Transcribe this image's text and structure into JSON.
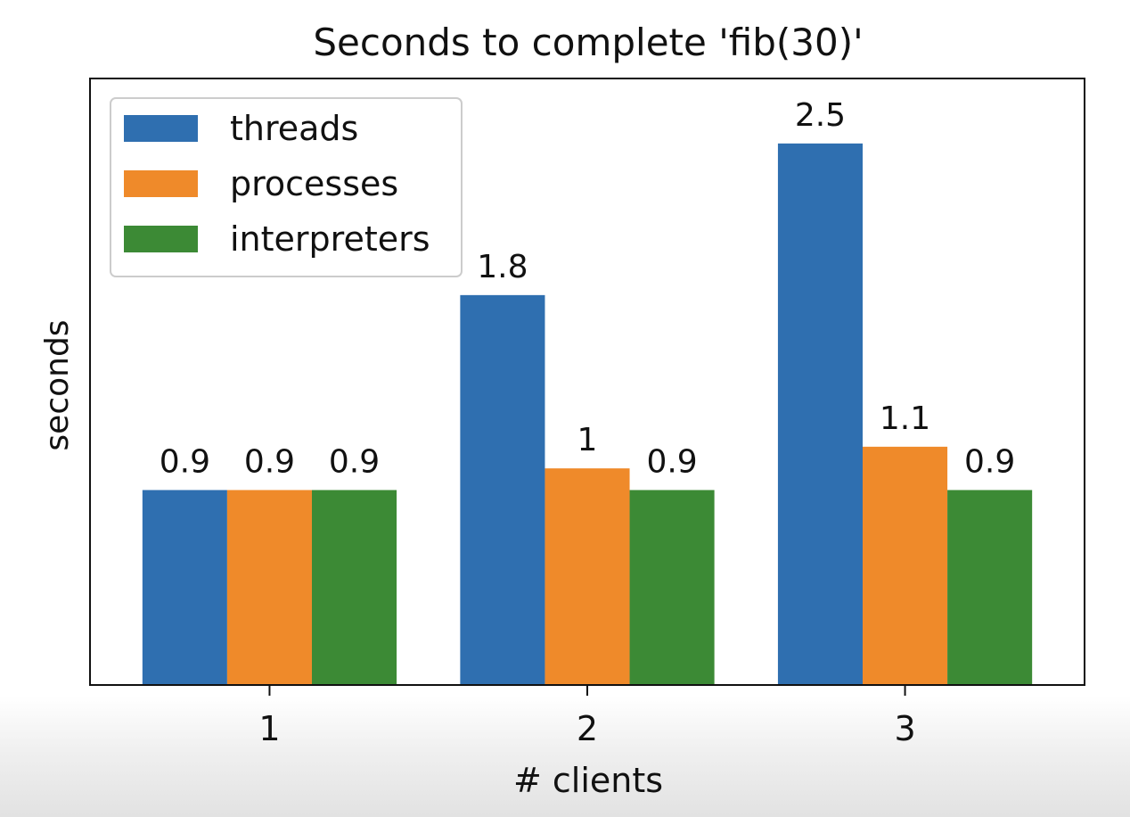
{
  "chart_data": {
    "type": "bar",
    "title": "Seconds to complete 'fib(30)'",
    "xlabel": "# clients",
    "ylabel": "seconds",
    "categories": [
      "1",
      "2",
      "3"
    ],
    "series": [
      {
        "name": "threads",
        "color": "#2f6fb0",
        "values": [
          0.9,
          1.8,
          2.5
        ],
        "labels": [
          "0.9",
          "1.8",
          "2.5"
        ]
      },
      {
        "name": "processes",
        "color": "#ef8a2a",
        "values": [
          0.9,
          1.0,
          1.1
        ],
        "labels": [
          "0.9",
          "1",
          "1.1"
        ]
      },
      {
        "name": "interpreters",
        "color": "#3c8a35",
        "values": [
          0.9,
          0.9,
          0.9
        ],
        "labels": [
          "0.9",
          "0.9",
          "0.9"
        ]
      }
    ],
    "ylim": [
      0,
      2.8
    ],
    "y_ticks_shown": false,
    "grid": false,
    "legend": "upper-left"
  }
}
